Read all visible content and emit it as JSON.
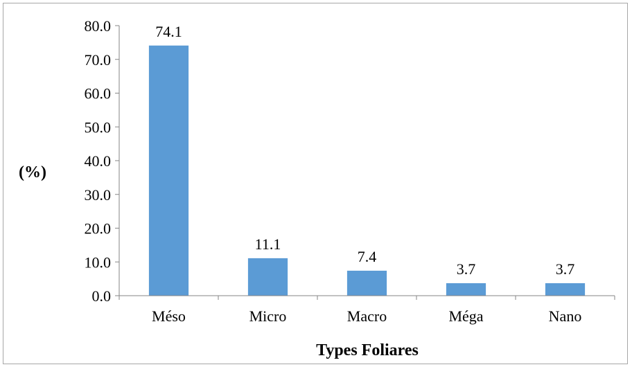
{
  "chart_data": {
    "type": "bar",
    "categories": [
      "Méso",
      "Micro",
      "Macro",
      "Méga",
      "Nano"
    ],
    "values": [
      74.1,
      11.1,
      7.4,
      3.7,
      3.7
    ],
    "data_labels": [
      "74.1",
      "11.1",
      "7.4",
      "3.7",
      "3.7"
    ],
    "title": "",
    "xlabel": "Types Foliares",
    "ylabel": "(%)",
    "ylim": [
      0,
      80
    ],
    "yticks": [
      "0.0",
      "10.0",
      "20.0",
      "30.0",
      "40.0",
      "50.0",
      "60.0",
      "70.0",
      "80.0"
    ],
    "grid": false,
    "legend": "none",
    "bar_color": "#5b9bd5"
  }
}
